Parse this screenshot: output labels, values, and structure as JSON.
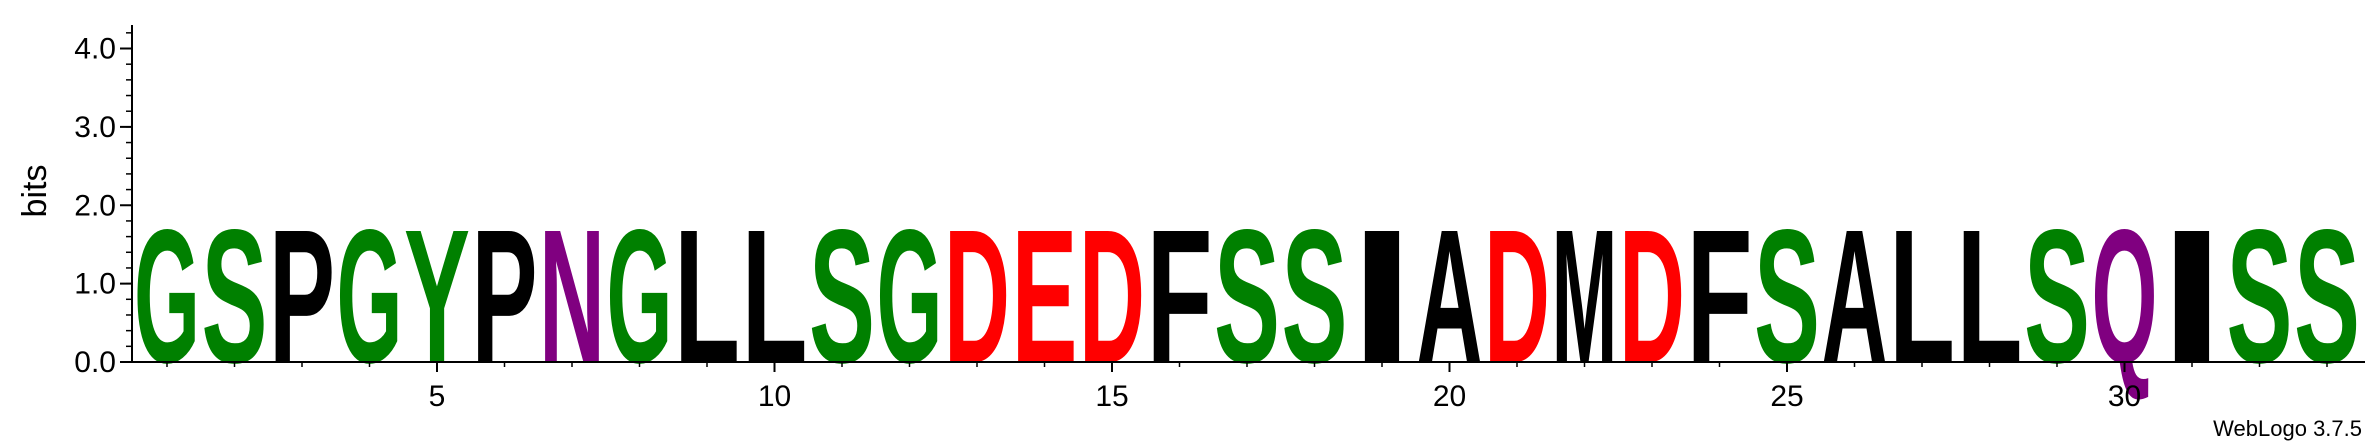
{
  "chart_data": {
    "type": "sequence-logo",
    "ylabel": "bits",
    "ylim": [
      0,
      4.3
    ],
    "y_ticks": [
      "0.0",
      "1.0",
      "2.0",
      "3.0",
      "4.0"
    ],
    "x_ticks": [
      "5",
      "10",
      "15",
      "20",
      "25",
      "30"
    ],
    "positions": [
      {
        "pos": 1,
        "letter": "G",
        "bits": 1.75
      },
      {
        "pos": 2,
        "letter": "S",
        "bits": 1.75
      },
      {
        "pos": 3,
        "letter": "P",
        "bits": 1.75
      },
      {
        "pos": 4,
        "letter": "G",
        "bits": 1.75
      },
      {
        "pos": 5,
        "letter": "Y",
        "bits": 1.75
      },
      {
        "pos": 6,
        "letter": "P",
        "bits": 1.75
      },
      {
        "pos": 7,
        "letter": "N",
        "bits": 1.75
      },
      {
        "pos": 8,
        "letter": "G",
        "bits": 1.75
      },
      {
        "pos": 9,
        "letter": "L",
        "bits": 1.75
      },
      {
        "pos": 10,
        "letter": "L",
        "bits": 1.75
      },
      {
        "pos": 11,
        "letter": "S",
        "bits": 1.75
      },
      {
        "pos": 12,
        "letter": "G",
        "bits": 1.75
      },
      {
        "pos": 13,
        "letter": "D",
        "bits": 1.75
      },
      {
        "pos": 14,
        "letter": "E",
        "bits": 1.75
      },
      {
        "pos": 15,
        "letter": "D",
        "bits": 1.75
      },
      {
        "pos": 16,
        "letter": "F",
        "bits": 1.75
      },
      {
        "pos": 17,
        "letter": "S",
        "bits": 1.75
      },
      {
        "pos": 18,
        "letter": "S",
        "bits": 1.75
      },
      {
        "pos": 19,
        "letter": "I",
        "bits": 1.75
      },
      {
        "pos": 20,
        "letter": "A",
        "bits": 1.75
      },
      {
        "pos": 21,
        "letter": "D",
        "bits": 1.75
      },
      {
        "pos": 22,
        "letter": "M",
        "bits": 1.75
      },
      {
        "pos": 23,
        "letter": "D",
        "bits": 1.75
      },
      {
        "pos": 24,
        "letter": "F",
        "bits": 1.75
      },
      {
        "pos": 25,
        "letter": "S",
        "bits": 1.75
      },
      {
        "pos": 26,
        "letter": "A",
        "bits": 1.75
      },
      {
        "pos": 27,
        "letter": "L",
        "bits": 1.75
      },
      {
        "pos": 28,
        "letter": "L",
        "bits": 1.75
      },
      {
        "pos": 29,
        "letter": "S",
        "bits": 1.75
      },
      {
        "pos": 30,
        "letter": "Q",
        "bits": 1.75
      },
      {
        "pos": 31,
        "letter": "I",
        "bits": 1.75
      },
      {
        "pos": 32,
        "letter": "S",
        "bits": 1.75
      },
      {
        "pos": 33,
        "letter": "S",
        "bits": 1.75
      }
    ],
    "colors": {
      "G": "#008000",
      "S": "#008000",
      "Y": "#008000",
      "N": "#800080",
      "Q": "#800080",
      "D": "#ff0000",
      "E": "#ff0000",
      "P": "#000000",
      "L": "#000000",
      "F": "#000000",
      "I": "#000000",
      "A": "#000000",
      "M": "#000000"
    }
  },
  "footer": {
    "text": "WebLogo 3.7.5"
  }
}
